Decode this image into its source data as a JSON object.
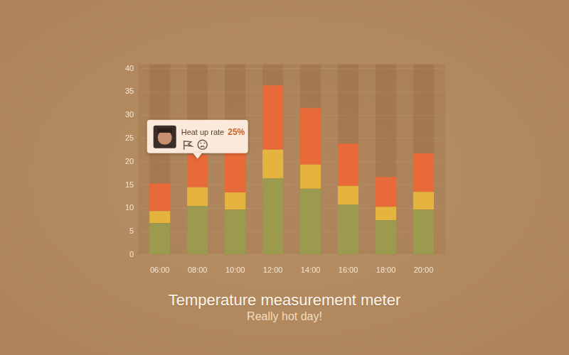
{
  "chart_data": {
    "type": "bar",
    "title": "Temperature measurement meter",
    "subtitle": "Really hot day!",
    "categories": [
      "06:00",
      "08:00",
      "10:00",
      "12:00",
      "14:00",
      "16:00",
      "18:00",
      "20:00"
    ],
    "series": [
      {
        "color": "#9c9a4e",
        "values": [
          6.8,
          10.5,
          9.7,
          16.4,
          14.2,
          10.8,
          7.4,
          9.7
        ]
      },
      {
        "color": "#e4b43e",
        "values": [
          2.6,
          4.0,
          3.7,
          6.2,
          5.2,
          4.0,
          2.9,
          3.8
        ]
      },
      {
        "color": "#e76a38",
        "values": [
          5.9,
          7.0,
          9.6,
          13.8,
          12.1,
          9.1,
          6.4,
          8.3
        ]
      }
    ],
    "stacked": true,
    "ylim": [
      0,
      40
    ],
    "yticks": [
      0,
      5,
      10,
      15,
      20,
      25,
      30,
      35,
      40
    ],
    "grid": true,
    "annotation": {
      "category": "08:00",
      "text": "Heat up rate",
      "value": 25,
      "label": "25%"
    }
  }
}
